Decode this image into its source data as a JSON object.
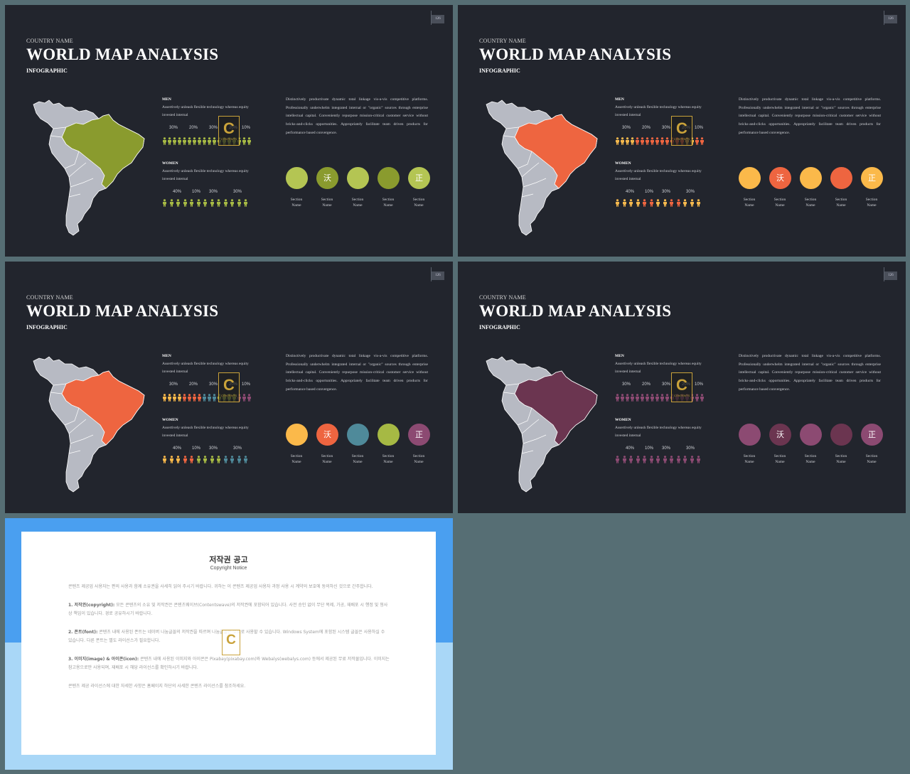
{
  "slides": [
    {
      "country": "COUNTRY NAME",
      "title": "WORLD MAP ANALYSIS",
      "tag": "INFOGRAPHIC",
      "page": "126",
      "highlight": "#8a9b2e",
      "men": {
        "head": "MEN",
        "text": "Assertively unleash flexible technology whereas equity invested internal",
        "pcts": [
          "30%",
          "20%",
          "30%",
          "20%",
          "10%"
        ],
        "colors": [
          "#a6b944",
          "#a6b944",
          "#a6b944",
          "#a6b944",
          "#a6b944",
          "#a6b944",
          "#a6b944",
          "#a6b944",
          "#a6b944",
          "#a6b944",
          "#a6b944",
          "#a6b944",
          "#a6b944",
          "#a6b944",
          "#a6b944",
          "#a6b944",
          "#a6b944",
          "#a6b944"
        ]
      },
      "women": {
        "head": "WOMEN",
        "text": "Assertively unleash flexible technology whereas equity invested internal",
        "pcts": [
          "40%",
          "10%",
          "30%",
          "30%"
        ],
        "colors": [
          "#a6b944",
          "#a6b944",
          "#a6b944",
          "#a6b944",
          "#a6b944",
          "#a6b944",
          "#a6b944",
          "#a6b944",
          "#a6b944",
          "#a6b944",
          "#a6b944",
          "#a6b944",
          "#a6b944"
        ]
      },
      "paragraph": "Distinctively productivate dynamic total linkage vis-a-vis competitive platforms. Professionally underwhelm integrated internal or \"organic\" sources through enterprise intellectual capital. Conveniently repurpose mission-critical customer service without bricks-and-clicks opportunities. Appropriately facilitate team driven products for performance based convergence.",
      "circles": [
        {
          "color": "#b4c553",
          "glyph": "",
          "label": "Section Name"
        },
        {
          "color": "#8a9b2e",
          "glyph": "沃",
          "label": "Section Name"
        },
        {
          "color": "#b4c553",
          "glyph": "",
          "label": "Section Name"
        },
        {
          "color": "#8a9b2e",
          "glyph": "",
          "label": "Section Name"
        },
        {
          "color": "#b4c553",
          "glyph": "正",
          "label": "Section Name"
        }
      ]
    },
    {
      "country": "COUNTRY NAME",
      "title": "WORLD MAP ANALYSIS",
      "tag": "INFOGRAPHIC",
      "page": "126",
      "highlight": "#ee6540",
      "men": {
        "head": "MEN",
        "text": "Assertively unleash flexible technology whereas equity invested internal",
        "pcts": [
          "30%",
          "20%",
          "30%",
          "20%",
          "10%"
        ],
        "colors": [
          "#f4b84d",
          "#f4b84d",
          "#f4b84d",
          "#f4b84d",
          "#ee6540",
          "#ee6540",
          "#ee6540",
          "#ee6540",
          "#ee6540",
          "#ee6540",
          "#ee6540",
          "#ee6540",
          "#ee6540",
          "#ee6540",
          "#f4b84d",
          "#f4b84d",
          "#ee6540",
          "#ee6540"
        ]
      },
      "women": {
        "head": "WOMEN",
        "text": "Assertively unleash flexible technology whereas equity invested internal",
        "pcts": [
          "40%",
          "10%",
          "30%",
          "30%"
        ],
        "colors": [
          "#f4b84d",
          "#f4b84d",
          "#f4b84d",
          "#f4b84d",
          "#ee6540",
          "#ee6540",
          "#f4b84d",
          "#f4b84d",
          "#ee6540",
          "#ee6540",
          "#f4b84d",
          "#f4b84d",
          "#f4b84d"
        ]
      },
      "paragraph": "Distinctively productivate dynamic total linkage vis-a-vis competitive platforms. Professionally underwhelm integrated internal or \"organic\" sources through enterprise intellectual capital. Conveniently repurpose mission-critical customer service without bricks-and-clicks opportunities. Appropriately facilitate team driven products for performance based convergence.",
      "circles": [
        {
          "color": "#fbb94a",
          "glyph": "",
          "label": "Section Name"
        },
        {
          "color": "#ee6540",
          "glyph": "沃",
          "label": "Section Name"
        },
        {
          "color": "#fbb94a",
          "glyph": "",
          "label": "Section Name"
        },
        {
          "color": "#ee6540",
          "glyph": "",
          "label": "Section Name"
        },
        {
          "color": "#fbb94a",
          "glyph": "正",
          "label": "Section Name"
        }
      ]
    },
    {
      "country": "COUNTRY NAME",
      "title": "WORLD MAP ANALYSIS",
      "tag": "INFOGRAPHIC",
      "page": "126",
      "highlight": "#ee6540",
      "men": {
        "head": "MEN",
        "text": "Assertively unleash flexible technology whereas equity invested internal",
        "pcts": [
          "30%",
          "20%",
          "30%",
          "20%",
          "10%"
        ],
        "colors": [
          "#fbb94a",
          "#fbb94a",
          "#fbb94a",
          "#fbb94a",
          "#ee6540",
          "#ee6540",
          "#ee6540",
          "#ee6540",
          "#4f8a9a",
          "#4f8a9a",
          "#4f8a9a",
          "#a6b944",
          "#a6b944",
          "#a6b944",
          "#a6b944",
          "#8c4a72",
          "#8c4a72",
          "#8c4a72"
        ]
      },
      "women": {
        "head": "WOMEN",
        "text": "Assertively unleash flexible technology whereas equity invested internal",
        "pcts": [
          "40%",
          "10%",
          "30%",
          "30%"
        ],
        "colors": [
          "#fbb94a",
          "#fbb94a",
          "#fbb94a",
          "#ee6540",
          "#ee6540",
          "#a6b944",
          "#a6b944",
          "#a6b944",
          "#a6b944",
          "#4f8a9a",
          "#4f8a9a",
          "#4f8a9a",
          "#4f8a9a"
        ]
      },
      "paragraph": "Distinctively productivate dynamic total linkage vis-a-vis competitive platforms. Professionally underwhelm integrated internal or \"organic\" sources through enterprise intellectual capital. Conveniently repurpose mission-critical customer service without bricks-and-clicks opportunities. Appropriately facilitate team driven products for performance based convergence.",
      "circles": [
        {
          "color": "#fbb94a",
          "glyph": "",
          "label": "Section Name"
        },
        {
          "color": "#ee6540",
          "glyph": "沃",
          "label": "Section Name"
        },
        {
          "color": "#4f8a9a",
          "glyph": "",
          "label": "Section Name"
        },
        {
          "color": "#a6b944",
          "glyph": "",
          "label": "Section Name"
        },
        {
          "color": "#8c4a72",
          "glyph": "正",
          "label": "Section Name"
        }
      ]
    },
    {
      "country": "COUNTRY NAME",
      "title": "WORLD MAP ANALYSIS",
      "tag": "INFOGRAPHIC",
      "page": "126",
      "highlight": "#6b3550",
      "men": {
        "head": "MEN",
        "text": "Assertively unleash flexible technology whereas equity invested internal",
        "pcts": [
          "30%",
          "20%",
          "30%",
          "20%",
          "10%"
        ],
        "colors": [
          "#8c4a72",
          "#8c4a72",
          "#8c4a72",
          "#8c4a72",
          "#8c4a72",
          "#8c4a72",
          "#8c4a72",
          "#8c4a72",
          "#8c4a72",
          "#8c4a72",
          "#8c4a72",
          "#8c4a72",
          "#8c4a72",
          "#8c4a72",
          "#8c4a72",
          "#8c4a72",
          "#8c4a72",
          "#8c4a72"
        ]
      },
      "women": {
        "head": "WOMEN",
        "text": "Assertively unleash flexible technology whereas equity invested internal",
        "pcts": [
          "40%",
          "10%",
          "30%",
          "30%"
        ],
        "colors": [
          "#8c4a72",
          "#8c4a72",
          "#8c4a72",
          "#8c4a72",
          "#8c4a72",
          "#8c4a72",
          "#8c4a72",
          "#8c4a72",
          "#8c4a72",
          "#8c4a72",
          "#8c4a72",
          "#8c4a72",
          "#8c4a72"
        ]
      },
      "paragraph": "Distinctively productivate dynamic total linkage vis-a-vis competitive platforms. Professionally underwhelm integrated internal or \"organic\" sources through enterprise intellectual capital. Conveniently repurpose mission-critical customer service without bricks-and-clicks opportunities. Appropriately facilitate team driven products for performance based convergence.",
      "circles": [
        {
          "color": "#8c4a72",
          "glyph": "",
          "label": "Section Name"
        },
        {
          "color": "#6b3550",
          "glyph": "沃",
          "label": "Section Name"
        },
        {
          "color": "#8c4a72",
          "glyph": "",
          "label": "Section Name"
        },
        {
          "color": "#6b3550",
          "glyph": "",
          "label": "Section Name"
        },
        {
          "color": "#8c4a72",
          "glyph": "正",
          "label": "Section Name"
        }
      ]
    }
  ],
  "notice": {
    "title": "저작권 공고",
    "subtitle": "Copyright Notice",
    "intro": "콘텐츠 제공업 사용자는 편의 사용과 함께 소유권을 사세히 읽어 주시기 바랍니다. 귀하는 이 콘텐츠 제공업 사용자 과정 사용 시 계약의 보호에 동의하신 것으로 간주합니다.",
    "p1_head": "1. 저작권(copyright):",
    "p1": "모든 콘텐츠의 소유 및 저작권은 콘텐츠웨이브(Contentswave)의 저작권에 포함되어 있습니다. 사전 승인 없이 무단 복제, 가공, 재배포 시 행정 및 형사상 책임이 있습니다. 경로 공유하시기 바랍니다.",
    "p2_head": "2. 폰트(font):",
    "p2": "콘텐츠 내에 사용된 폰트는 네이버 나눔글꼴의 저작권을 따르며 나눔글꼴은 무료로 사용할 수 있습니다. Windows System에 포함된 시스템 글꼴은 사용하실 수 있습니다. 다른 폰트는 별도 라이선스가 필요합니다.",
    "p3_head": "3. 이미지(image) & 아이콘(icon):",
    "p3": "콘텐츠 내에 사용된 이미지와 아이콘은 Pixabay(pixabay.com)와 Webalys(webalys.com) 등에서 제공된 무료 저작물입니다. 이미지는 참고용으로만 사용되며, 재배포 시 해당 라이선스를 확인하시기 바랍니다.",
    "outro": "콘텐츠 제공 라이선스에 대한 자세한 사항은 홈페이지 하단의 사세한 콘텐츠 라이선스를 참조하세요.",
    "watermark": "C"
  },
  "watermark_letter": "C",
  "watermark_text": "CONTENTS"
}
